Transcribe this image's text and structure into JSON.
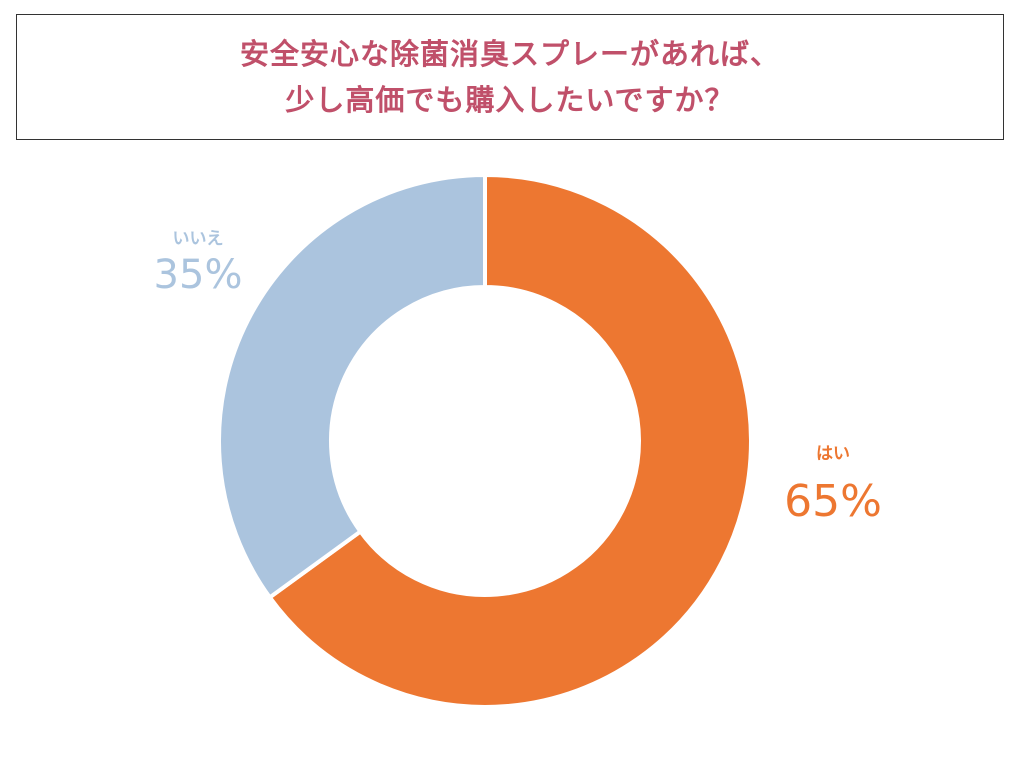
{
  "header": {
    "title_line1": "安全安心な除菌消臭スプレーがあれば、",
    "title_line2": "少し高価でも購入したいですか？"
  },
  "colors": {
    "title": "#C0506A",
    "yes": "#ED7731",
    "no": "#ABC4DE",
    "separator": "#ffffff"
  },
  "chart_data": {
    "type": "pie",
    "variant": "donut",
    "labels": [
      "はい",
      "いいえ"
    ],
    "values": [
      65,
      35
    ],
    "value_labels": [
      "65%",
      "35%"
    ],
    "start": "top",
    "direction": "clockwise"
  }
}
